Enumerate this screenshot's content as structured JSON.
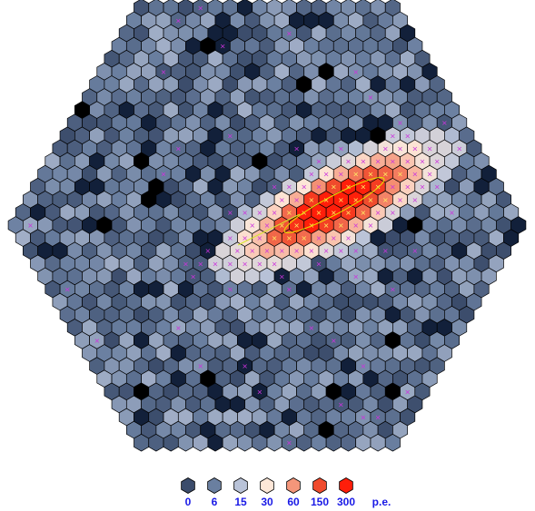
{
  "legend": {
    "labels": [
      "0",
      "6",
      "15",
      "30",
      "60",
      "150",
      "300"
    ],
    "unit": "p.e.",
    "colors": [
      "#3b4c6b",
      "#6a7fa0",
      "#b9c3d8",
      "#fde7d8",
      "#f4967a",
      "#f04b2d",
      "#ff1e0a"
    ]
  },
  "colors": {
    "hex_outline": "#000000",
    "marker": "#cc33dd",
    "marker_bright": "#ffee66",
    "ellipse": "#e6e600",
    "line": "#d6e82a"
  }
}
